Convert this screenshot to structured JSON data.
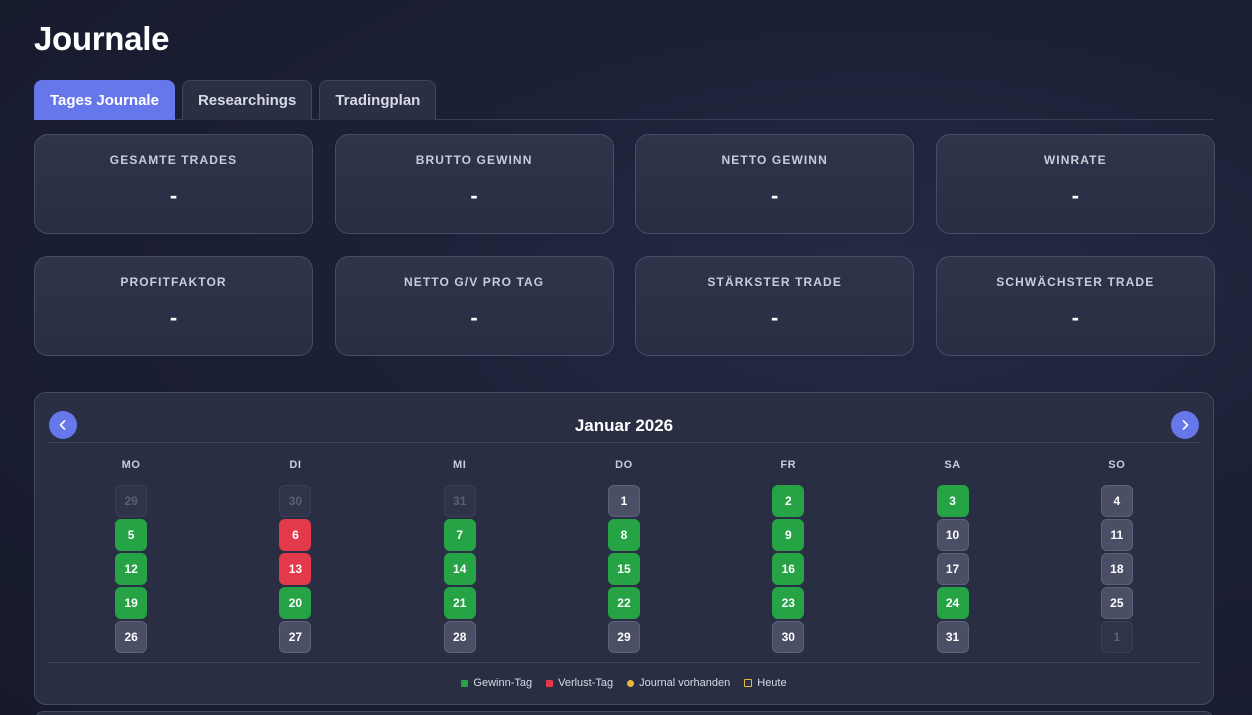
{
  "page": {
    "title": "Journale"
  },
  "tabs": [
    {
      "label": "Tages Journale",
      "active": true
    },
    {
      "label": "Researchings",
      "active": false
    },
    {
      "label": "Tradingplan",
      "active": false
    }
  ],
  "stats": [
    {
      "label": "GESAMTE TRADES",
      "value": "-"
    },
    {
      "label": "BRUTTO GEWINN",
      "value": "-"
    },
    {
      "label": "NETTO GEWINN",
      "value": "-"
    },
    {
      "label": "WINRATE",
      "value": "-"
    },
    {
      "label": "PROFITFAKTOR",
      "value": "-"
    },
    {
      "label": "NETTO G/V PRO TAG",
      "value": "-"
    },
    {
      "label": "STÄRKSTER TRADE",
      "value": "-"
    },
    {
      "label": "SCHWÄCHSTER TRADE",
      "value": "-"
    }
  ],
  "calendar": {
    "month_title": "Januar 2026",
    "prev_icon": "chevron-left-icon",
    "next_icon": "chevron-right-icon",
    "weekdays": [
      "MO",
      "DI",
      "MI",
      "DO",
      "FR",
      "SA",
      "SO"
    ],
    "days": [
      {
        "label": "29",
        "status": "muted"
      },
      {
        "label": "30",
        "status": "muted"
      },
      {
        "label": "31",
        "status": "muted"
      },
      {
        "label": "1",
        "status": "neutral"
      },
      {
        "label": "2",
        "status": "win"
      },
      {
        "label": "3",
        "status": "win"
      },
      {
        "label": "4",
        "status": "neutral"
      },
      {
        "label": "5",
        "status": "win"
      },
      {
        "label": "6",
        "status": "loss"
      },
      {
        "label": "7",
        "status": "win"
      },
      {
        "label": "8",
        "status": "win"
      },
      {
        "label": "9",
        "status": "win"
      },
      {
        "label": "10",
        "status": "neutral"
      },
      {
        "label": "11",
        "status": "neutral"
      },
      {
        "label": "12",
        "status": "win"
      },
      {
        "label": "13",
        "status": "loss"
      },
      {
        "label": "14",
        "status": "win"
      },
      {
        "label": "15",
        "status": "win"
      },
      {
        "label": "16",
        "status": "win"
      },
      {
        "label": "17",
        "status": "neutral"
      },
      {
        "label": "18",
        "status": "neutral"
      },
      {
        "label": "19",
        "status": "win"
      },
      {
        "label": "20",
        "status": "win"
      },
      {
        "label": "21",
        "status": "win"
      },
      {
        "label": "22",
        "status": "win"
      },
      {
        "label": "23",
        "status": "win"
      },
      {
        "label": "24",
        "status": "win"
      },
      {
        "label": "25",
        "status": "neutral"
      },
      {
        "label": "26",
        "status": "neutral"
      },
      {
        "label": "27",
        "status": "neutral"
      },
      {
        "label": "28",
        "status": "neutral"
      },
      {
        "label": "29",
        "status": "neutral"
      },
      {
        "label": "30",
        "status": "neutral"
      },
      {
        "label": "31",
        "status": "neutral"
      },
      {
        "label": "1",
        "status": "muted"
      }
    ],
    "legend": [
      {
        "label": "Gewinn-Tag",
        "color": "#26a344",
        "shape": "square"
      },
      {
        "label": "Verlust-Tag",
        "color": "#e23a4a",
        "shape": "square"
      },
      {
        "label": "Journal vorhanden",
        "color": "#e6b93a",
        "shape": "dot"
      },
      {
        "label": "Heute",
        "color": "#e6b93a",
        "shape": "outline"
      }
    ]
  }
}
